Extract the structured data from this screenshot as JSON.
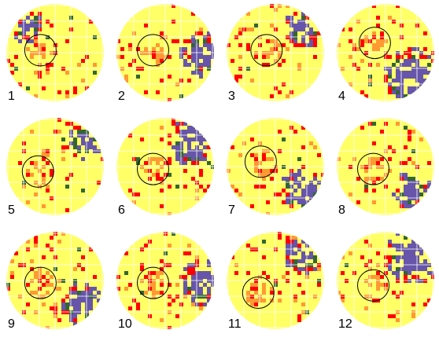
{
  "panels": [
    {
      "label": "1",
      "blob_dir": "top-left",
      "blob_strength": 0.55,
      "ring_offset": [
        -0.3,
        -0.05
      ]
    },
    {
      "label": "2",
      "blob_dir": "right",
      "blob_strength": 0.7,
      "ring_offset": [
        -0.25,
        -0.05
      ]
    },
    {
      "label": "3",
      "blob_dir": "top-right",
      "blob_strength": 0.6,
      "ring_offset": [
        -0.18,
        -0.05
      ]
    },
    {
      "label": "4",
      "blob_dir": "bottom-right",
      "blob_strength": 0.85,
      "ring_offset": [
        -0.22,
        -0.2
      ]
    },
    {
      "label": "5",
      "blob_dir": "top-right",
      "blob_strength": 0.55,
      "ring_offset": [
        -0.35,
        0.1
      ]
    },
    {
      "label": "6",
      "blob_dir": "top-right",
      "blob_strength": 0.75,
      "ring_offset": [
        -0.25,
        0.05
      ]
    },
    {
      "label": "7",
      "blob_dir": "bottom-right",
      "blob_strength": 0.7,
      "ring_offset": [
        -0.3,
        -0.1
      ]
    },
    {
      "label": "8",
      "blob_dir": "bottom-right",
      "blob_strength": 0.6,
      "ring_offset": [
        -0.25,
        0.05
      ]
    },
    {
      "label": "9",
      "blob_dir": "bottom-right",
      "blob_strength": 0.65,
      "ring_offset": [
        -0.3,
        0.05
      ]
    },
    {
      "label": "10",
      "blob_dir": "right",
      "blob_strength": 0.7,
      "ring_offset": [
        -0.25,
        0.05
      ]
    },
    {
      "label": "11",
      "blob_dir": "top-right",
      "blob_strength": 0.6,
      "ring_offset": [
        -0.35,
        0.25
      ]
    },
    {
      "label": "12",
      "blob_dir": "top-right",
      "blob_strength": 0.85,
      "ring_offset": [
        -0.25,
        0.1
      ]
    }
  ],
  "colors": {
    "background": "#ffffff",
    "field": "#ffff66",
    "mild": "#ff9933",
    "moderate": "#ff0000",
    "severe": "#6655aa",
    "deep": "#336633",
    "grid": "#ffffff",
    "ring": "#000000"
  }
}
